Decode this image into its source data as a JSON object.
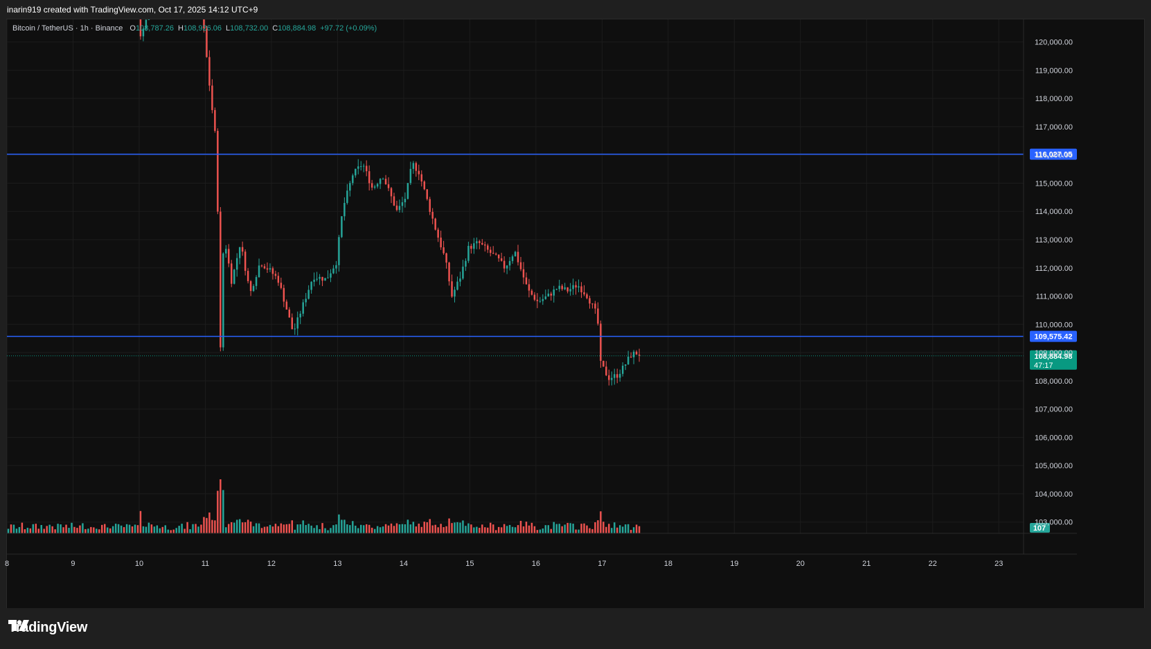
{
  "header": {
    "credit": "inarin919 created with TradingView.com, Oct 17, 2025 14:12 UTC+9"
  },
  "legend": {
    "symbol": "Bitcoin / TetherUS · 1h · Binance",
    "open_label": "O",
    "open": "108,787.26",
    "high_label": "H",
    "high": "108,926.06",
    "low_label": "L",
    "low": "108,732.00",
    "close_label": "C",
    "close": "108,884.98",
    "change": "+97.72 (+0.09%)"
  },
  "brand": {
    "name": "TradingView",
    "logo_icon": "tradingview-logo-icon"
  },
  "colors": {
    "background": "#0f0f0f",
    "up": "#26a69a",
    "down": "#ef5350",
    "level_line": "#2962ff",
    "last_price_bg": "#089981"
  },
  "chart_data": {
    "type": "candlestick",
    "symbol": "BTCUSDT",
    "interval": "1h",
    "exchange": "Binance",
    "y_axis": {
      "range": [
        102600,
        120800
      ],
      "ticks": [
        "103,000.00",
        "104,000.00",
        "105,000.00",
        "106,000.00",
        "107,000.00",
        "108,000.00",
        "109,000.00",
        "110,000.00",
        "111,000.00",
        "112,000.00",
        "113,000.00",
        "114,000.00",
        "115,000.00",
        "116,000.00",
        "117,000.00",
        "118,000.00",
        "119,000.00",
        "120,000.00"
      ]
    },
    "x_axis": {
      "range": [
        8,
        23.5
      ],
      "ticks": [
        "8",
        "9",
        "10",
        "11",
        "12",
        "13",
        "14",
        "15",
        "16",
        "17",
        "18",
        "19",
        "20",
        "21",
        "22",
        "23"
      ]
    },
    "horizontal_levels": [
      {
        "value": 116027.05,
        "label": "116,027.05"
      },
      {
        "value": 109575.42,
        "label": "109,575.42"
      }
    ],
    "last_price": {
      "value": 108884.98,
      "label": "108,884.98",
      "countdown": "47:17"
    },
    "volume_label": "107",
    "anchors": [
      [
        8.0,
        121200
      ],
      [
        9.0,
        121400
      ],
      [
        10.0,
        121300
      ],
      [
        10.05,
        120100
      ],
      [
        10.15,
        121100
      ],
      [
        10.4,
        121600
      ],
      [
        10.95,
        121500
      ],
      [
        11.0,
        120400
      ],
      [
        11.1,
        118100
      ],
      [
        11.18,
        116500
      ],
      [
        11.22,
        113100
      ],
      [
        11.24,
        108300
      ],
      [
        11.3,
        113200
      ],
      [
        11.42,
        111500
      ],
      [
        11.55,
        112900
      ],
      [
        11.7,
        111100
      ],
      [
        11.85,
        112200
      ],
      [
        12.0,
        111900
      ],
      [
        12.12,
        111600
      ],
      [
        12.22,
        110800
      ],
      [
        12.35,
        109700
      ],
      [
        12.5,
        110700
      ],
      [
        12.65,
        111700
      ],
      [
        12.85,
        111600
      ],
      [
        13.0,
        112200
      ],
      [
        13.1,
        114100
      ],
      [
        13.25,
        115300
      ],
      [
        13.4,
        115700
      ],
      [
        13.55,
        114800
      ],
      [
        13.7,
        115300
      ],
      [
        13.8,
        114700
      ],
      [
        13.92,
        114000
      ],
      [
        14.05,
        114500
      ],
      [
        14.15,
        115700
      ],
      [
        14.25,
        115400
      ],
      [
        14.35,
        114600
      ],
      [
        14.5,
        113400
      ],
      [
        14.65,
        112300
      ],
      [
        14.75,
        111000
      ],
      [
        14.88,
        111700
      ],
      [
        15.0,
        112700
      ],
      [
        15.15,
        112900
      ],
      [
        15.3,
        112600
      ],
      [
        15.45,
        112300
      ],
      [
        15.55,
        112000
      ],
      [
        15.7,
        112600
      ],
      [
        15.8,
        111900
      ],
      [
        15.9,
        111200
      ],
      [
        16.05,
        110800
      ],
      [
        16.2,
        111000
      ],
      [
        16.35,
        111300
      ],
      [
        16.5,
        111200
      ],
      [
        16.65,
        111400
      ],
      [
        16.8,
        111000
      ],
      [
        16.95,
        110300
      ],
      [
        17.0,
        108600
      ],
      [
        17.12,
        108100
      ],
      [
        17.25,
        108200
      ],
      [
        17.35,
        108500
      ],
      [
        17.45,
        108900
      ],
      [
        17.53,
        109000
      ],
      [
        17.58,
        108885
      ]
    ]
  }
}
